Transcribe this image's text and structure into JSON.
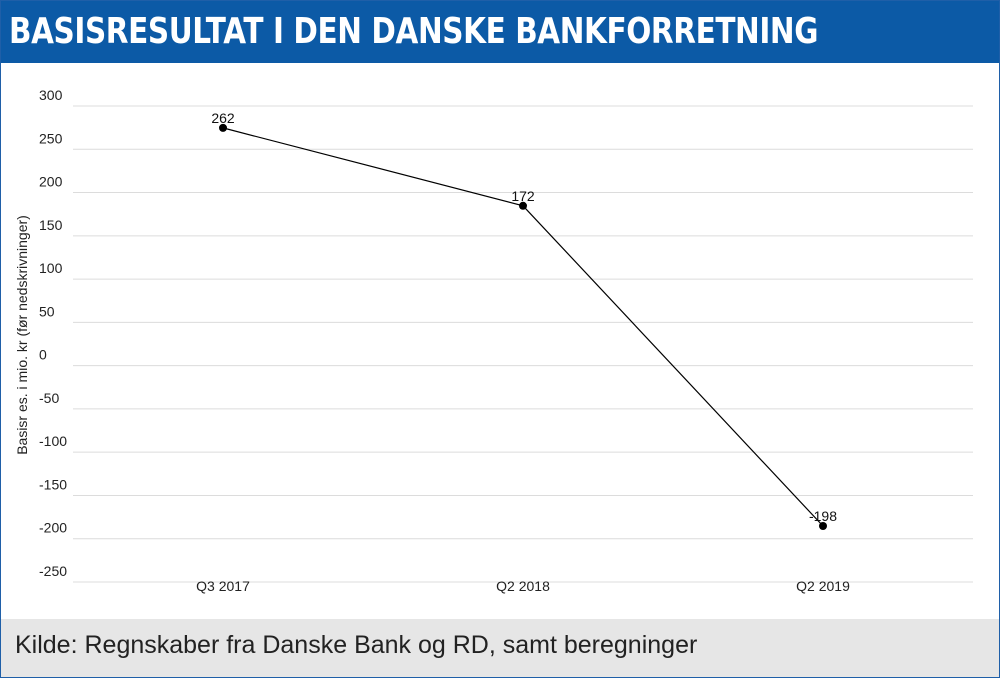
{
  "header": {
    "title": "BASISRESULTAT I DEN DANSKE BANKFORRETNING",
    "background": "#0c5aa6"
  },
  "footer": {
    "source": "Kilde: Regnskaber fra Danske Bank og RD, samt beregninger",
    "background": "#e6e6e6"
  },
  "chart_data": {
    "type": "line",
    "title": "BASISRESULTAT I DEN DANSKE BANKFORRETNING",
    "xlabel": "",
    "ylabel": "Basisr  es. i mio. kr (før nedskrivninger)",
    "categories": [
      "Q3 2017",
      "Q2 2018",
      "Q2 2019"
    ],
    "series": [
      {
        "values": [
          262,
          172,
          -198
        ],
        "color": "#000000"
      }
    ],
    "data_labels": [
      "262",
      "172",
      "-198"
    ],
    "ylim": [
      -250,
      300
    ],
    "yticks": [
      300,
      250,
      200,
      150,
      100,
      50,
      0,
      -50,
      -100,
      -150,
      -200,
      -250
    ],
    "grid": true,
    "legend": "none",
    "gridline_color": "#dcdcdc"
  }
}
